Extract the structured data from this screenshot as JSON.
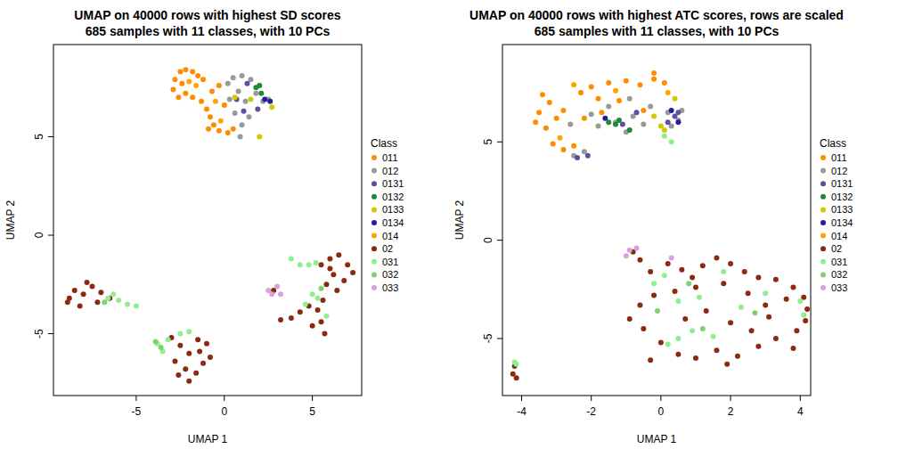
{
  "chart_data": [
    {
      "type": "scatter",
      "title": "UMAP on 40000 rows with highest SD scores",
      "subtitle": "685 samples with 11 classes, with 10 PCs",
      "x_label": "UMAP 1",
      "y_label": "UMAP 2",
      "legend_title": "Class",
      "legend": "right",
      "marker": "circle",
      "xlim": [
        -9.7,
        7.8
      ],
      "ylim": [
        -8.14,
        9.68
      ],
      "xticks": [
        -5,
        0,
        5
      ],
      "yticks": [
        -5,
        0,
        5
      ],
      "series": [
        {
          "name": "011",
          "color": "#FF8C00",
          "x": [
            -2.8,
            -2.5,
            -2.2,
            -1.8,
            -1.5,
            -1.2,
            -2.9,
            -2.6,
            -2.2,
            -1.8,
            -1.3,
            -1.0,
            -0.8,
            -0.6,
            -0.3,
            0.2,
            0.5,
            -0.9,
            -2.4,
            -0.7,
            -0.3,
            0.0
          ],
          "values": [
            7.9,
            8.3,
            8.4,
            8.3,
            8.1,
            7.9,
            7.4,
            7.0,
            7.2,
            7.0,
            6.8,
            6.4,
            6.0,
            5.6,
            5.3,
            5.2,
            5.4,
            5.4,
            7.7,
            7.3,
            7.6,
            6.6
          ]
        },
        {
          "name": "012",
          "color": "#999999",
          "x": [
            0.5,
            1.0,
            1.5,
            0.8,
            1.2,
            1.8,
            0.6,
            1.0,
            1.4,
            2.2,
            2.5,
            0.2,
            0.9,
            0.3
          ],
          "values": [
            8.0,
            8.1,
            7.9,
            7.3,
            6.8,
            7.2,
            6.2,
            5.6,
            6.0,
            6.8,
            6.9,
            7.7,
            5.0,
            6.9
          ]
        },
        {
          "name": "0131",
          "color": "#5E4FA2",
          "x": [
            1.3,
            0.7,
            1.9,
            1.1
          ],
          "values": [
            7.7,
            6.9,
            6.4,
            6.3
          ]
        },
        {
          "name": "0132",
          "color": "#1B8A3A",
          "x": [
            1.8,
            2.1,
            2.0
          ],
          "values": [
            7.5,
            7.2,
            7.6
          ]
        },
        {
          "name": "0133",
          "color": "#CCCC00",
          "x": [
            0.6,
            2.0,
            2.7,
            1.5
          ],
          "values": [
            7.0,
            5.0,
            6.5,
            6.9
          ]
        },
        {
          "name": "0134",
          "color": "#1F1F9F",
          "x": [
            2.3,
            2.6
          ],
          "values": [
            6.9,
            6.8
          ]
        },
        {
          "name": "014",
          "color": "#FFA500",
          "x": [
            -2.0,
            -1.6,
            -0.5,
            -0.2
          ],
          "values": [
            7.8,
            7.6,
            6.8,
            5.8
          ]
        },
        {
          "name": "02",
          "color": "#8B2A0E",
          "x": [
            -8.5,
            -8.8,
            -8.0,
            -7.5,
            -7.2,
            -8.2,
            -7.8,
            -7.0,
            -6.5,
            -8.9,
            -3.0,
            -2.5,
            -2.0,
            -1.5,
            -1.0,
            -2.8,
            -2.2,
            -1.6,
            -1.2,
            -2.0,
            -0.8,
            -2.6,
            -1.4,
            5.5,
            6.0,
            6.5,
            7.0,
            7.3,
            6.8,
            6.2,
            5.8,
            6.4,
            5.6,
            5.3,
            5.5,
            5.7,
            4.8,
            4.3,
            3.8,
            5.0,
            6.0,
            2.8,
            3.2
          ],
          "values": [
            -2.8,
            -3.2,
            -3.0,
            -2.6,
            -3.4,
            -3.6,
            -2.4,
            -2.9,
            -3.2,
            -3.4,
            -5.2,
            -5.6,
            -6.0,
            -5.3,
            -5.5,
            -6.4,
            -6.8,
            -7.0,
            -6.5,
            -7.4,
            -6.2,
            -7.1,
            -5.9,
            -1.5,
            -1.2,
            -1.0,
            -1.5,
            -1.9,
            -2.3,
            -2.0,
            -2.5,
            -2.8,
            -3.3,
            -3.8,
            -4.4,
            -5.0,
            -3.6,
            -3.9,
            -4.2,
            -4.6,
            -1.7,
            -2.8,
            -4.3
          ]
        },
        {
          "name": "031",
          "color": "#90EE90",
          "x": [
            -6.6,
            -6.0,
            -5.5,
            -5.0,
            -6.3,
            -3.8,
            -3.5,
            -3.2,
            -2.5,
            -2.0,
            3.8,
            4.3,
            4.8,
            5.2,
            5.0,
            5.3,
            4.6,
            5.8
          ],
          "values": [
            -3.2,
            -3.3,
            -3.5,
            -3.6,
            -3.0,
            -5.5,
            -5.9,
            -5.3,
            -5.0,
            -4.9,
            -1.2,
            -1.5,
            -1.5,
            -1.4,
            -3.0,
            -3.2,
            -3.5,
            -4.1
          ]
        },
        {
          "name": "032",
          "color": "#7FD170",
          "x": [
            -3.6,
            -3.9,
            -6.8,
            5.5
          ],
          "values": [
            -5.7,
            -5.4,
            -3.4,
            -2.7
          ]
        },
        {
          "name": "033",
          "color": "#DDA0DD",
          "x": [
            2.5,
            2.7,
            3.0,
            3.2
          ],
          "values": [
            -2.8,
            -3.0,
            -2.6,
            -3.0
          ]
        }
      ]
    },
    {
      "type": "scatter",
      "title": "UMAP on 40000 rows with highest ATC scores, rows are scaled",
      "subtitle": "685 samples with 11 classes, with 10 PCs",
      "x_label": "UMAP 1",
      "y_label": "UMAP 2",
      "legend_title": "Class",
      "legend": "right",
      "marker": "circle",
      "xlim": [
        -4.55,
        4.3
      ],
      "ylim": [
        -7.9,
        9.95
      ],
      "xticks": [
        -4,
        -2,
        0,
        2,
        4
      ],
      "yticks": [
        -5,
        0,
        5
      ],
      "series": [
        {
          "name": "011",
          "color": "#FF8C00",
          "x": [
            -3.5,
            -3.2,
            -3.0,
            -3.6,
            -2.8,
            -3.1,
            -2.8,
            -2.5,
            -2.3,
            -2.0,
            -1.5,
            -1.0,
            -0.6,
            -0.2,
            0.1,
            -1.8,
            -1.2,
            -0.5,
            -3.4,
            -2.2,
            -1.7,
            -0.2,
            -3.3
          ],
          "values": [
            6.5,
            7.0,
            6.2,
            6.0,
            6.6,
            4.9,
            4.6,
            4.8,
            7.5,
            7.8,
            8.0,
            8.1,
            7.9,
            8.2,
            8.0,
            7.2,
            7.1,
            6.6,
            7.4,
            6.2,
            6.5,
            8.5,
            5.7
          ]
        },
        {
          "name": "012",
          "color": "#999999",
          "x": [
            -2.5,
            -2.2,
            -1.8,
            -1.3,
            -0.8,
            -0.3,
            0.2,
            0.5,
            -1.0,
            -0.5,
            -2.0,
            -1.5,
            0.3,
            0.6,
            -2.6,
            -0.9
          ],
          "values": [
            4.3,
            4.5,
            5.8,
            6.0,
            6.3,
            6.8,
            6.5,
            6.1,
            5.5,
            5.9,
            6.4,
            6.8,
            5.8,
            6.6,
            5.9,
            7.2
          ]
        },
        {
          "name": "0131",
          "color": "#5E4FA2",
          "x": [
            -2.4,
            -2.1,
            -0.7,
            0.2,
            0.4,
            0.5,
            -1.1
          ],
          "values": [
            4.2,
            4.3,
            6.5,
            6.0,
            6.3,
            6.5,
            5.9
          ]
        },
        {
          "name": "0132",
          "color": "#1B8A3A",
          "x": [
            -1.5,
            -1.3,
            -1.2,
            -0.9
          ],
          "values": [
            6.0,
            5.9,
            6.1,
            5.6
          ]
        },
        {
          "name": "0133",
          "color": "#CCCC00",
          "x": [
            0.1,
            0.0,
            -0.2,
            0.4
          ],
          "values": [
            5.6,
            5.8,
            6.3,
            7.2
          ]
        },
        {
          "name": "0134",
          "color": "#1F1F9F",
          "x": [
            0.5,
            -1.6,
            0.3
          ],
          "values": [
            6.0,
            6.2,
            6.6
          ]
        },
        {
          "name": "014",
          "color": "#FFA500",
          "x": [
            -2.5,
            -1.3,
            0.2,
            -2.9
          ],
          "values": [
            7.9,
            7.6,
            7.5,
            5.2
          ]
        },
        {
          "name": "02",
          "color": "#8B2A0E",
          "x": [
            -0.8,
            -0.6,
            -0.3,
            0.2,
            0.6,
            1.2,
            1.6,
            2.0,
            2.4,
            2.8,
            3.3,
            3.8,
            4.1,
            4.2,
            4.15,
            3.6,
            3.0,
            2.5,
            1.8,
            1.0,
            0.4,
            -0.2,
            -0.6,
            -0.9,
            -0.5,
            0.0,
            0.5,
            1.0,
            1.6,
            2.2,
            2.8,
            3.3,
            3.9,
            2.0,
            1.3,
            0.7,
            2.6,
            3.1,
            -0.3,
            1.9,
            0.9,
            3.8,
            -4.25,
            -4.2,
            -4.15
          ],
          "values": [
            -0.6,
            -1.0,
            -1.6,
            -1.2,
            -1.5,
            -1.3,
            -0.9,
            -1.2,
            -1.6,
            -1.9,
            -2.0,
            -2.4,
            -2.9,
            -3.5,
            -4.1,
            -3.0,
            -3.3,
            -2.7,
            -2.2,
            -2.4,
            -2.6,
            -2.8,
            -3.3,
            -4.0,
            -4.5,
            -5.2,
            -5.8,
            -6.0,
            -5.6,
            -5.9,
            -5.4,
            -5.0,
            -4.6,
            -4.2,
            -3.6,
            -4.0,
            -4.6,
            -3.9,
            -6.1,
            -6.3,
            -1.9,
            -5.5,
            -6.8,
            -6.4,
            -7.0
          ]
        },
        {
          "name": "031",
          "color": "#90EE90",
          "x": [
            -4.2,
            -4.15,
            0.1,
            -0.2,
            0.5,
            1.1,
            0.9,
            0.5,
            0.2,
            1.5,
            2.3,
            3.0,
            4.0,
            4.1,
            1.8,
            0.3,
            0.1
          ],
          "values": [
            -6.2,
            -6.3,
            -1.8,
            -2.2,
            -3.1,
            -2.9,
            -4.6,
            -5.0,
            -5.3,
            -4.9,
            -3.4,
            -2.7,
            -3.1,
            -3.8,
            -1.6,
            5.0,
            5.3
          ]
        },
        {
          "name": "032",
          "color": "#7FD170",
          "x": [
            1.2,
            2.7,
            0.8,
            -0.1
          ],
          "values": [
            -4.5,
            -3.7,
            -2.2,
            -3.6
          ]
        },
        {
          "name": "033",
          "color": "#DDA0DD",
          "x": [
            -1.0,
            -0.9,
            -0.7,
            0.3
          ],
          "values": [
            -0.8,
            -0.5,
            -0.4,
            -0.9
          ]
        }
      ]
    }
  ]
}
